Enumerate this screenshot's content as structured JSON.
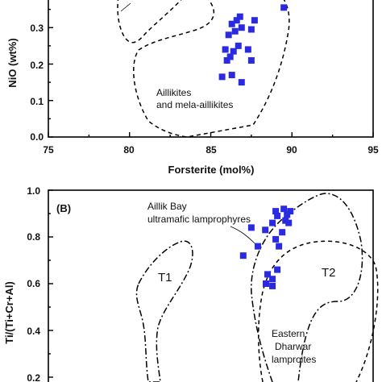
{
  "chart_data": [
    {
      "type": "scatter",
      "panel": "",
      "xlabel": "Forsterite (mol%)",
      "ylabel": "NiO (wt%)",
      "xlim": [
        75,
        95
      ],
      "ylim": [
        0.0,
        0.4
      ],
      "xticks": [
        "75",
        "80",
        "85",
        "90",
        "95"
      ],
      "yticks": [
        "0.0",
        "0.1",
        "0.2",
        "0.3"
      ],
      "marker_color": "#2a2ae0",
      "points": [
        {
          "x": 86.8,
          "y": 0.33
        },
        {
          "x": 86.6,
          "y": 0.32
        },
        {
          "x": 87.7,
          "y": 0.32
        },
        {
          "x": 86.3,
          "y": 0.31
        },
        {
          "x": 86.9,
          "y": 0.3
        },
        {
          "x": 86.5,
          "y": 0.29
        },
        {
          "x": 86.1,
          "y": 0.28
        },
        {
          "x": 87.5,
          "y": 0.295
        },
        {
          "x": 89.5,
          "y": 0.355
        },
        {
          "x": 86.7,
          "y": 0.25
        },
        {
          "x": 85.9,
          "y": 0.24
        },
        {
          "x": 86.4,
          "y": 0.235
        },
        {
          "x": 87.3,
          "y": 0.24
        },
        {
          "x": 86.2,
          "y": 0.22
        },
        {
          "x": 86.0,
          "y": 0.21
        },
        {
          "x": 87.5,
          "y": 0.21
        },
        {
          "x": 86.3,
          "y": 0.17
        },
        {
          "x": 85.7,
          "y": 0.165
        },
        {
          "x": 86.9,
          "y": 0.15
        }
      ],
      "annotations": [
        "Aillikites",
        "and mela-aillikites"
      ]
    },
    {
      "type": "scatter",
      "panel": "(B)",
      "xlabel": "",
      "ylabel": "Ti/(Ti+Cr+Al)",
      "ylim": [
        0.2,
        1.0
      ],
      "yticks": [
        "0.2",
        "0.4",
        "0.6",
        "0.8",
        "1.0"
      ],
      "marker_color": "#2a2ae0",
      "points": [
        {
          "x": 0.7,
          "y": 0.91
        },
        {
          "x": 0.725,
          "y": 0.92
        },
        {
          "x": 0.745,
          "y": 0.91
        },
        {
          "x": 0.705,
          "y": 0.89
        },
        {
          "x": 0.735,
          "y": 0.895
        },
        {
          "x": 0.69,
          "y": 0.86
        },
        {
          "x": 0.73,
          "y": 0.87
        },
        {
          "x": 0.74,
          "y": 0.86
        },
        {
          "x": 0.625,
          "y": 0.84
        },
        {
          "x": 0.668,
          "y": 0.83
        },
        {
          "x": 0.72,
          "y": 0.82
        },
        {
          "x": 0.7,
          "y": 0.79
        },
        {
          "x": 0.71,
          "y": 0.76
        },
        {
          "x": 0.645,
          "y": 0.76
        },
        {
          "x": 0.6,
          "y": 0.72
        },
        {
          "x": 0.705,
          "y": 0.66
        },
        {
          "x": 0.675,
          "y": 0.64
        },
        {
          "x": 0.69,
          "y": 0.62
        },
        {
          "x": 0.67,
          "y": 0.6
        },
        {
          "x": 0.69,
          "y": 0.59
        }
      ],
      "annotations": [
        "Aillik Bay",
        "ultramafic lamprophyres",
        "T1",
        "T2",
        "Eastern",
        "Dharwar",
        "lamproites"
      ]
    }
  ]
}
